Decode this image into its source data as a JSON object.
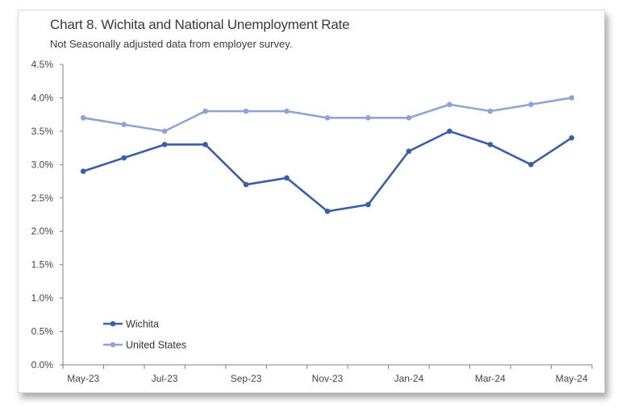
{
  "chart_data": {
    "type": "line",
    "title": "Chart 8. Wichita and National Unemployment Rate",
    "subtitle": "Not Seasonally adjusted data from employer survey.",
    "xlabel": "",
    "ylabel": "",
    "categories": [
      "May-23",
      "Jun-23",
      "Jul-23",
      "Aug-23",
      "Sep-23",
      "Oct-23",
      "Nov-23",
      "Dec-23",
      "Jan-24",
      "Feb-24",
      "Mar-24",
      "Apr-24",
      "May-24"
    ],
    "x_tick_labels": [
      "May-23",
      "Jul-23",
      "Sep-23",
      "Nov-23",
      "Jan-24",
      "Mar-24",
      "May-24"
    ],
    "ylim": [
      0,
      4.5
    ],
    "y_tick_labels": [
      "0.0%",
      "0.5%",
      "1.0%",
      "1.5%",
      "2.0%",
      "2.5%",
      "3.0%",
      "3.5%",
      "4.0%",
      "4.5%"
    ],
    "grid": false,
    "legend_position": "bottom-left",
    "series": [
      {
        "name": "Wichita",
        "color": "#3a5ea8",
        "values": [
          2.9,
          3.1,
          3.3,
          3.3,
          2.7,
          2.8,
          2.3,
          2.4,
          3.2,
          3.5,
          3.3,
          3.0,
          3.4
        ]
      },
      {
        "name": "United States",
        "color": "#8fa4d4",
        "values": [
          3.7,
          3.6,
          3.5,
          3.8,
          3.8,
          3.8,
          3.7,
          3.7,
          3.7,
          3.9,
          3.8,
          3.9,
          4.0
        ]
      }
    ]
  }
}
